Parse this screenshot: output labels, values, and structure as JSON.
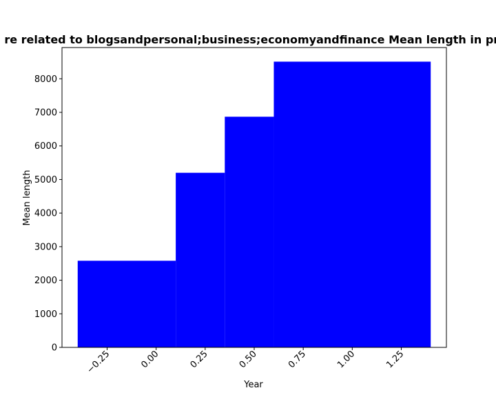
{
  "chart_data": {
    "type": "bar",
    "title": "re related to blogsandpersonal;business;economyandfinance Mean length in pri",
    "xlabel": "Year",
    "ylabel": "Mean length",
    "bars": [
      {
        "x_start": -0.4,
        "x_end": 0.1,
        "value": 2580
      },
      {
        "x_start": 0.1,
        "x_end": 0.35,
        "value": 5200
      },
      {
        "x_start": 0.35,
        "x_end": 0.6,
        "value": 6870
      },
      {
        "x_start": 0.6,
        "x_end": 1.4,
        "value": 8510
      }
    ],
    "xlim": [
      -0.48,
      1.48
    ],
    "ylim": [
      0,
      8930
    ],
    "xticks": [
      -0.25,
      0.0,
      0.25,
      0.5,
      0.75,
      1.0,
      1.25
    ],
    "xtick_labels": [
      "−0.25",
      "0.00",
      "0.25",
      "0.50",
      "0.75",
      "1.00",
      "1.25"
    ],
    "yticks": [
      0,
      1000,
      2000,
      3000,
      4000,
      5000,
      6000,
      7000,
      8000
    ],
    "ytick_labels": [
      "0",
      "1000",
      "2000",
      "3000",
      "4000",
      "5000",
      "6000",
      "7000",
      "8000"
    ],
    "bar_color": "#0000ff",
    "grid": false,
    "legend": "none"
  }
}
